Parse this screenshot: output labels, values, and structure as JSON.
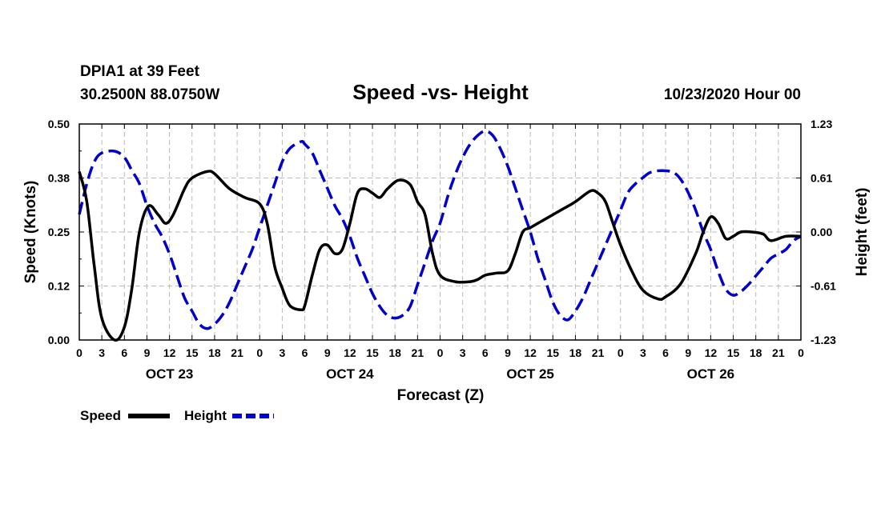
{
  "header": {
    "station": "DPIA1 at 39 Feet",
    "coords": "30.2500N 88.0750W",
    "datetime": "10/23/2020 Hour 00"
  },
  "chart_data": {
    "type": "line",
    "title": "Speed -vs- Height",
    "xlabel": "Forecast (Z)",
    "ylabel": "Speed (Knots)",
    "y2label": "Height (feet)",
    "x_hours_range": [
      0,
      96
    ],
    "ylim": [
      0,
      0.5
    ],
    "y2lim": [
      -1.23,
      1.23
    ],
    "yticks": [
      "0.00",
      "0.12",
      "0.25",
      "0.38",
      "0.50"
    ],
    "y2ticks": [
      "-1.23",
      "-0.61",
      "0.00",
      "0.61",
      "1.23"
    ],
    "xtick_labels": [
      "0",
      "3",
      "6",
      "9",
      "12",
      "15",
      "18",
      "21",
      "0",
      "3",
      "6",
      "9",
      "12",
      "15",
      "18",
      "21",
      "0",
      "3",
      "6",
      "9",
      "12",
      "15",
      "18",
      "21",
      "0",
      "3",
      "6",
      "9",
      "12",
      "15",
      "18",
      "21",
      "0"
    ],
    "day_labels": [
      {
        "label": "OCT 23",
        "hour": 12
      },
      {
        "label": "OCT 24",
        "hour": 36
      },
      {
        "label": "OCT 25",
        "hour": 60
      },
      {
        "label": "OCT 26",
        "hour": 84
      }
    ],
    "grid": true,
    "series": [
      {
        "name": "Speed",
        "axis": "left",
        "color": "#000000",
        "dash": "solid",
        "points": [
          [
            0,
            0.39
          ],
          [
            1,
            0.32
          ],
          [
            2,
            0.17
          ],
          [
            3,
            0.05
          ],
          [
            4.7,
            0.0
          ],
          [
            6,
            0.03
          ],
          [
            7,
            0.12
          ],
          [
            8,
            0.25
          ],
          [
            9.2,
            0.31
          ],
          [
            10.5,
            0.29
          ],
          [
            11.5,
            0.27
          ],
          [
            12.5,
            0.29
          ],
          [
            14,
            0.35
          ],
          [
            15,
            0.375
          ],
          [
            17,
            0.39
          ],
          [
            18,
            0.385
          ],
          [
            20,
            0.35
          ],
          [
            22,
            0.33
          ],
          [
            24,
            0.315
          ],
          [
            25,
            0.27
          ],
          [
            26,
            0.17
          ],
          [
            27,
            0.12
          ],
          [
            28,
            0.08
          ],
          [
            29.5,
            0.07
          ],
          [
            30,
            0.08
          ],
          [
            31,
            0.15
          ],
          [
            32,
            0.21
          ],
          [
            33,
            0.22
          ],
          [
            34,
            0.2
          ],
          [
            35,
            0.21
          ],
          [
            36,
            0.27
          ],
          [
            37,
            0.34
          ],
          [
            38,
            0.35
          ],
          [
            39,
            0.34
          ],
          [
            40,
            0.33
          ],
          [
            41,
            0.35
          ],
          [
            42.5,
            0.37
          ],
          [
            44,
            0.36
          ],
          [
            45,
            0.32
          ],
          [
            46,
            0.29
          ],
          [
            47,
            0.2
          ],
          [
            48,
            0.15
          ],
          [
            50,
            0.135
          ],
          [
            52,
            0.135
          ],
          [
            53,
            0.14
          ],
          [
            54,
            0.15
          ],
          [
            55.5,
            0.155
          ],
          [
            57,
            0.16
          ],
          [
            58,
            0.2
          ],
          [
            59,
            0.25
          ],
          [
            60,
            0.26
          ],
          [
            62,
            0.28
          ],
          [
            64,
            0.3
          ],
          [
            66,
            0.32
          ],
          [
            68,
            0.345
          ],
          [
            69,
            0.34
          ],
          [
            70,
            0.32
          ],
          [
            71,
            0.27
          ],
          [
            72,
            0.22
          ],
          [
            73.5,
            0.16
          ],
          [
            75,
            0.115
          ],
          [
            77,
            0.095
          ],
          [
            78,
            0.1
          ],
          [
            80,
            0.13
          ],
          [
            82,
            0.2
          ],
          [
            83,
            0.25
          ],
          [
            84,
            0.285
          ],
          [
            85,
            0.27
          ],
          [
            86,
            0.235
          ],
          [
            87,
            0.24
          ],
          [
            88,
            0.25
          ],
          [
            89.5,
            0.25
          ],
          [
            91,
            0.245
          ],
          [
            92,
            0.23
          ],
          [
            94,
            0.24
          ],
          [
            96,
            0.24
          ]
        ]
      },
      {
        "name": "Height",
        "axis": "right",
        "color": "#0000cc",
        "dash": "dashed",
        "points": [
          [
            0,
            0.2
          ],
          [
            1,
            0.55
          ],
          [
            2,
            0.8
          ],
          [
            3,
            0.9
          ],
          [
            4.7,
            0.92
          ],
          [
            6,
            0.85
          ],
          [
            7,
            0.7
          ],
          [
            8,
            0.55
          ],
          [
            9,
            0.3
          ],
          [
            10,
            0.1
          ],
          [
            11,
            -0.05
          ],
          [
            12,
            -0.25
          ],
          [
            13,
            -0.5
          ],
          [
            14,
            -0.75
          ],
          [
            15,
            -0.9
          ],
          [
            16,
            -1.05
          ],
          [
            17,
            -1.1
          ],
          [
            18,
            -1.05
          ],
          [
            19,
            -0.95
          ],
          [
            20,
            -0.8
          ],
          [
            21,
            -0.6
          ],
          [
            22,
            -0.4
          ],
          [
            23,
            -0.2
          ],
          [
            24,
            0.05
          ],
          [
            25,
            0.3
          ],
          [
            26,
            0.55
          ],
          [
            27,
            0.8
          ],
          [
            28,
            0.95
          ],
          [
            29.5,
            1.03
          ],
          [
            30,
            1.0
          ],
          [
            31,
            0.9
          ],
          [
            32,
            0.7
          ],
          [
            33,
            0.5
          ],
          [
            34,
            0.3
          ],
          [
            35,
            0.15
          ],
          [
            36,
            -0.05
          ],
          [
            37,
            -0.3
          ],
          [
            38,
            -0.5
          ],
          [
            39,
            -0.7
          ],
          [
            40,
            -0.85
          ],
          [
            41,
            -0.95
          ],
          [
            42,
            -0.98
          ],
          [
            43,
            -0.95
          ],
          [
            44,
            -0.85
          ],
          [
            45,
            -0.6
          ],
          [
            46,
            -0.35
          ],
          [
            47,
            -0.1
          ],
          [
            48,
            0.1
          ],
          [
            49,
            0.4
          ],
          [
            50,
            0.65
          ],
          [
            51,
            0.85
          ],
          [
            52,
            1.0
          ],
          [
            53,
            1.1
          ],
          [
            54,
            1.15
          ],
          [
            55,
            1.1
          ],
          [
            56,
            0.95
          ],
          [
            57,
            0.75
          ],
          [
            58,
            0.5
          ],
          [
            59,
            0.25
          ],
          [
            60,
            0.0
          ],
          [
            61,
            -0.3
          ],
          [
            62,
            -0.55
          ],
          [
            63,
            -0.8
          ],
          [
            64,
            -0.95
          ],
          [
            65,
            -1.0
          ],
          [
            66,
            -0.9
          ],
          [
            67,
            -0.75
          ],
          [
            68,
            -0.55
          ],
          [
            69,
            -0.35
          ],
          [
            70,
            -0.15
          ],
          [
            71,
            0.05
          ],
          [
            72,
            0.25
          ],
          [
            73,
            0.45
          ],
          [
            74,
            0.55
          ],
          [
            75,
            0.62
          ],
          [
            76,
            0.68
          ],
          [
            77.5,
            0.7
          ],
          [
            79,
            0.68
          ],
          [
            80,
            0.6
          ],
          [
            81,
            0.45
          ],
          [
            82,
            0.25
          ],
          [
            83,
            0.0
          ],
          [
            84,
            -0.2
          ],
          [
            85,
            -0.45
          ],
          [
            86,
            -0.65
          ],
          [
            87,
            -0.72
          ],
          [
            88,
            -0.68
          ],
          [
            89,
            -0.6
          ],
          [
            90,
            -0.5
          ],
          [
            91,
            -0.4
          ],
          [
            92,
            -0.3
          ],
          [
            93,
            -0.25
          ],
          [
            94,
            -0.2
          ],
          [
            95,
            -0.1
          ],
          [
            96,
            -0.05
          ]
        ]
      }
    ]
  },
  "legend": {
    "speed_label": "Speed",
    "height_label": "Height",
    "speed_color": "#000000",
    "height_color": "#0000cc"
  }
}
